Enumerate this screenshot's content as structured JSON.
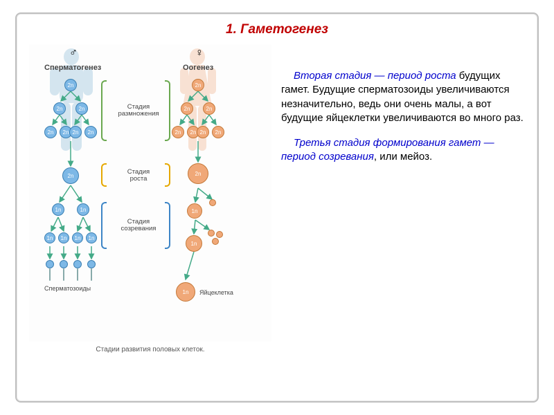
{
  "title": {
    "text": "1. Гаметогенез",
    "color": "#c00000"
  },
  "paragraphs": {
    "p1_hl": "Вторая стадия — период роста",
    "p1_hl_color": "#0000cc",
    "p1_rest": " будущих гамет. Будущие сперматозоиды увеличиваются незначительно, ведь они очень малы, а вот будущие яйцеклетки увеличиваются во много раз.",
    "p2_hl": "Третья стадия формирования гамет — период созревания",
    "p2_hl_color": "#0000cc",
    "p2_rest": ", или мейоз."
  },
  "diagram": {
    "caption": "Стадии развития половых клеток.",
    "male": {
      "symbol": "♂",
      "silhouette_color": "#8abbd8",
      "label": "Сперматогенез",
      "cell_fill": "#7db8e6",
      "cell_border": "#3a7fb3",
      "result_label": "Сперматозоиды"
    },
    "female": {
      "symbol": "♀",
      "silhouette_color": "#f0b088",
      "label": "Оогенез",
      "cell_fill": "#f0a878",
      "cell_border": "#c47838",
      "result_label": "Яйцеклетка"
    },
    "stages": [
      {
        "label": "Стадия\nразмножения",
        "color": "#6aa84f"
      },
      {
        "label": "Стадия\nроста",
        "color": "#e6a800"
      },
      {
        "label": "Стадия\nсозревания",
        "color": "#3d85c6"
      }
    ],
    "ploidy": {
      "diploid": "2n",
      "haploid": "1n"
    },
    "cell_sizes": {
      "small": 18,
      "medium": 22,
      "growth_m": 24,
      "growth_f": 30,
      "large": 18,
      "egg": 28,
      "body": 10
    }
  }
}
